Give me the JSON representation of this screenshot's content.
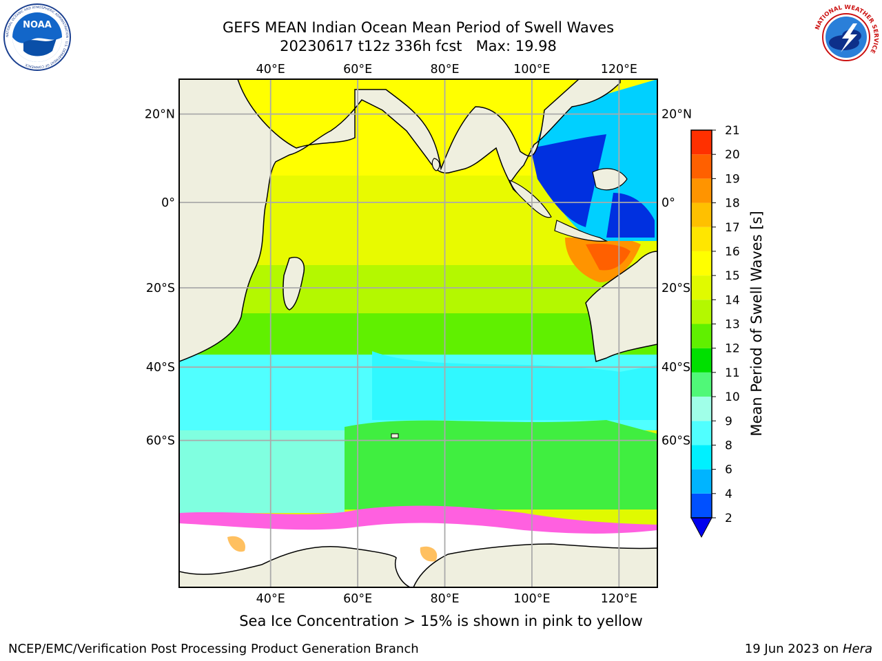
{
  "header": {
    "title_line1": "GEFS MEAN Indian Ocean Mean Period of Swell Waves",
    "title_line2": "20230617 t12z 336h fcst   Max: 19.98"
  },
  "logos": {
    "left": "NOAA",
    "left_ring_text": "NATIONAL OCEANIC AND ATMOSPHERIC ADMINISTRATION · U.S. DEPARTMENT OF COMMERCE",
    "right_ring_text": "NATIONAL WEATHER SERVICE"
  },
  "map": {
    "lon_ticks": [
      "40°E",
      "60°E",
      "80°E",
      "100°E",
      "120°E"
    ],
    "lat_ticks": [
      "20°N",
      "0°",
      "20°S",
      "40°S",
      "60°S"
    ],
    "gridlines": true,
    "land_color": "#efefdf",
    "ice_note": "Sea Ice Concentration > 15% is shown in pink to yellow"
  },
  "colorbar": {
    "label": "Mean Period of Swell Waves [s]",
    "ticks": [
      "2",
      "4",
      "6",
      "8",
      "9",
      "10",
      "11",
      "12",
      "13",
      "14",
      "15",
      "16",
      "17",
      "18",
      "19",
      "20",
      "21"
    ],
    "colors": [
      "#0050ff",
      "#00b4ff",
      "#00f0ff",
      "#50ffff",
      "#a0ffe8",
      "#50f878",
      "#00e000",
      "#60f000",
      "#b4f800",
      "#e0fa00",
      "#ffff00",
      "#ffe600",
      "#ffc000",
      "#ff9400",
      "#ff6000",
      "#ff3000",
      "#ff0000"
    ],
    "extend_color": "#0000ee"
  },
  "footer": {
    "left": "NCEP/EMC/Verification Post Processing Product Generation Branch",
    "right_date": "19 Jun 2023 on",
    "right_machine": "Hera"
  }
}
